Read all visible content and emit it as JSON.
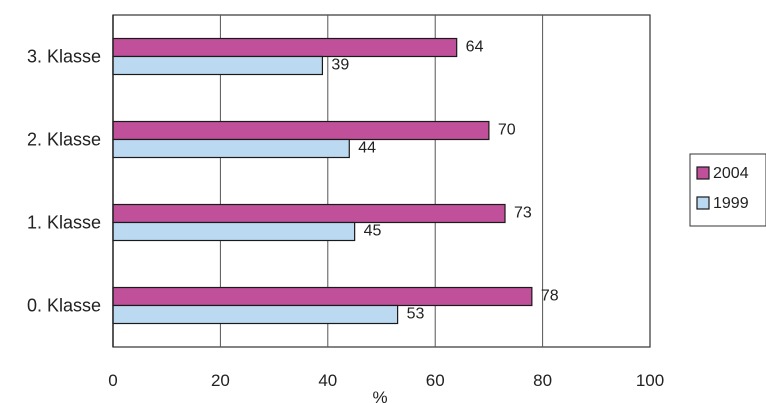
{
  "chart_data": {
    "type": "bar",
    "orientation": "horizontal",
    "categories": [
      "0. Klasse",
      "1. Klasse",
      "2. Klasse",
      "3. Klasse"
    ],
    "series": [
      {
        "name": "2004",
        "values": [
          78,
          73,
          70,
          64
        ],
        "color": "#c0509a"
      },
      {
        "name": "1999",
        "values": [
          53,
          45,
          44,
          39
        ],
        "color": "#bcd9f2"
      }
    ],
    "title": "",
    "xlabel": "%",
    "ylabel": "",
    "xlim": [
      0,
      100
    ],
    "xticks": [
      0,
      20,
      40,
      60,
      80,
      100
    ],
    "grid": true,
    "legend_position": "right"
  }
}
